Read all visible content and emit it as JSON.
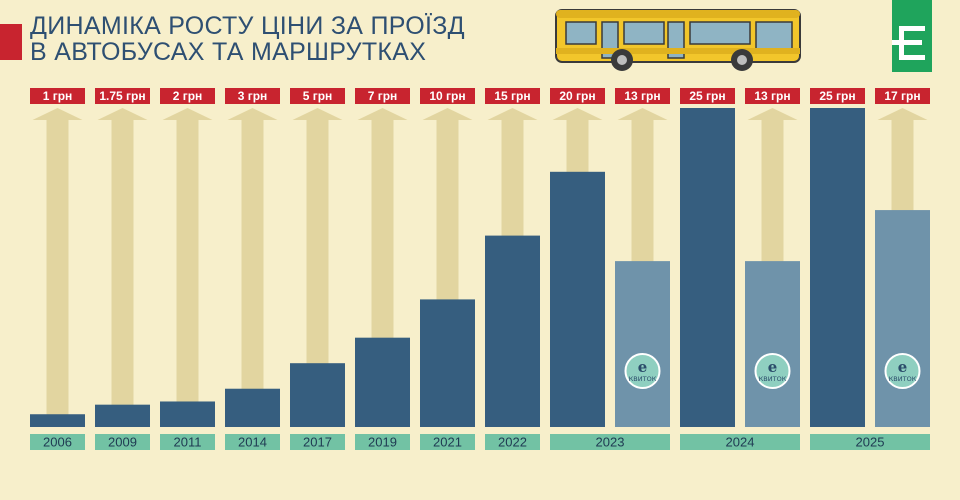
{
  "title": {
    "line1": "ДИНАМІКА РОСТУ ЦІНИ ЗА ПРОЇЗД",
    "line2": "В АВТОБУСАХ ТА МАРШРУТКАХ"
  },
  "logo": {
    "glyph": "Є"
  },
  "badge": {
    "letter": "e",
    "text": "КВИТОК"
  },
  "colors": {
    "background": "#f7efcb",
    "bar_cash": "#365e7f",
    "bar_eticket": "#6f93aa",
    "price_label": "#c8242f",
    "year_label": "#72c2a4",
    "arrow": "#e2d5a0",
    "accent_red": "#c8242f",
    "logo_green": "#1fa45c",
    "bus_yellow": "#f2c62b"
  },
  "chart_data": {
    "type": "bar",
    "title": "ДИНАМІКА РОСТУ ЦІНИ ЗА ПРОЇЗД В АВТОБУСАХ ТА МАРШРУТКАХ",
    "unit": "грн",
    "ylim": [
      0,
      25
    ],
    "grid": false,
    "year_groups": [
      "2006",
      "2009",
      "2011",
      "2014",
      "2017",
      "2019",
      "2021",
      "2022",
      "2023",
      "2024",
      "2025"
    ],
    "bars": [
      {
        "year": "2006",
        "value": 1,
        "label": "1 грн",
        "kind": "cash"
      },
      {
        "year": "2009",
        "value": 1.75,
        "label": "1.75 грн",
        "kind": "cash"
      },
      {
        "year": "2011",
        "value": 2,
        "label": "2 грн",
        "kind": "cash"
      },
      {
        "year": "2014",
        "value": 3,
        "label": "3 грн",
        "kind": "cash"
      },
      {
        "year": "2017",
        "value": 5,
        "label": "5 грн",
        "kind": "cash"
      },
      {
        "year": "2019",
        "value": 7,
        "label": "7 грн",
        "kind": "cash"
      },
      {
        "year": "2021",
        "value": 10,
        "label": "10 грн",
        "kind": "cash"
      },
      {
        "year": "2022",
        "value": 15,
        "label": "15 грн",
        "kind": "cash"
      },
      {
        "year": "2023",
        "value": 20,
        "label": "20 грн",
        "kind": "cash"
      },
      {
        "year": "2023",
        "value": 13,
        "label": "13 грн",
        "kind": "eticket"
      },
      {
        "year": "2024",
        "value": 25,
        "label": "25 грн",
        "kind": "cash"
      },
      {
        "year": "2024",
        "value": 13,
        "label": "13 грн",
        "kind": "eticket"
      },
      {
        "year": "2025",
        "value": 25,
        "label": "25 грн",
        "kind": "cash"
      },
      {
        "year": "2025",
        "value": 17,
        "label": "17 грн",
        "kind": "eticket"
      }
    ]
  }
}
